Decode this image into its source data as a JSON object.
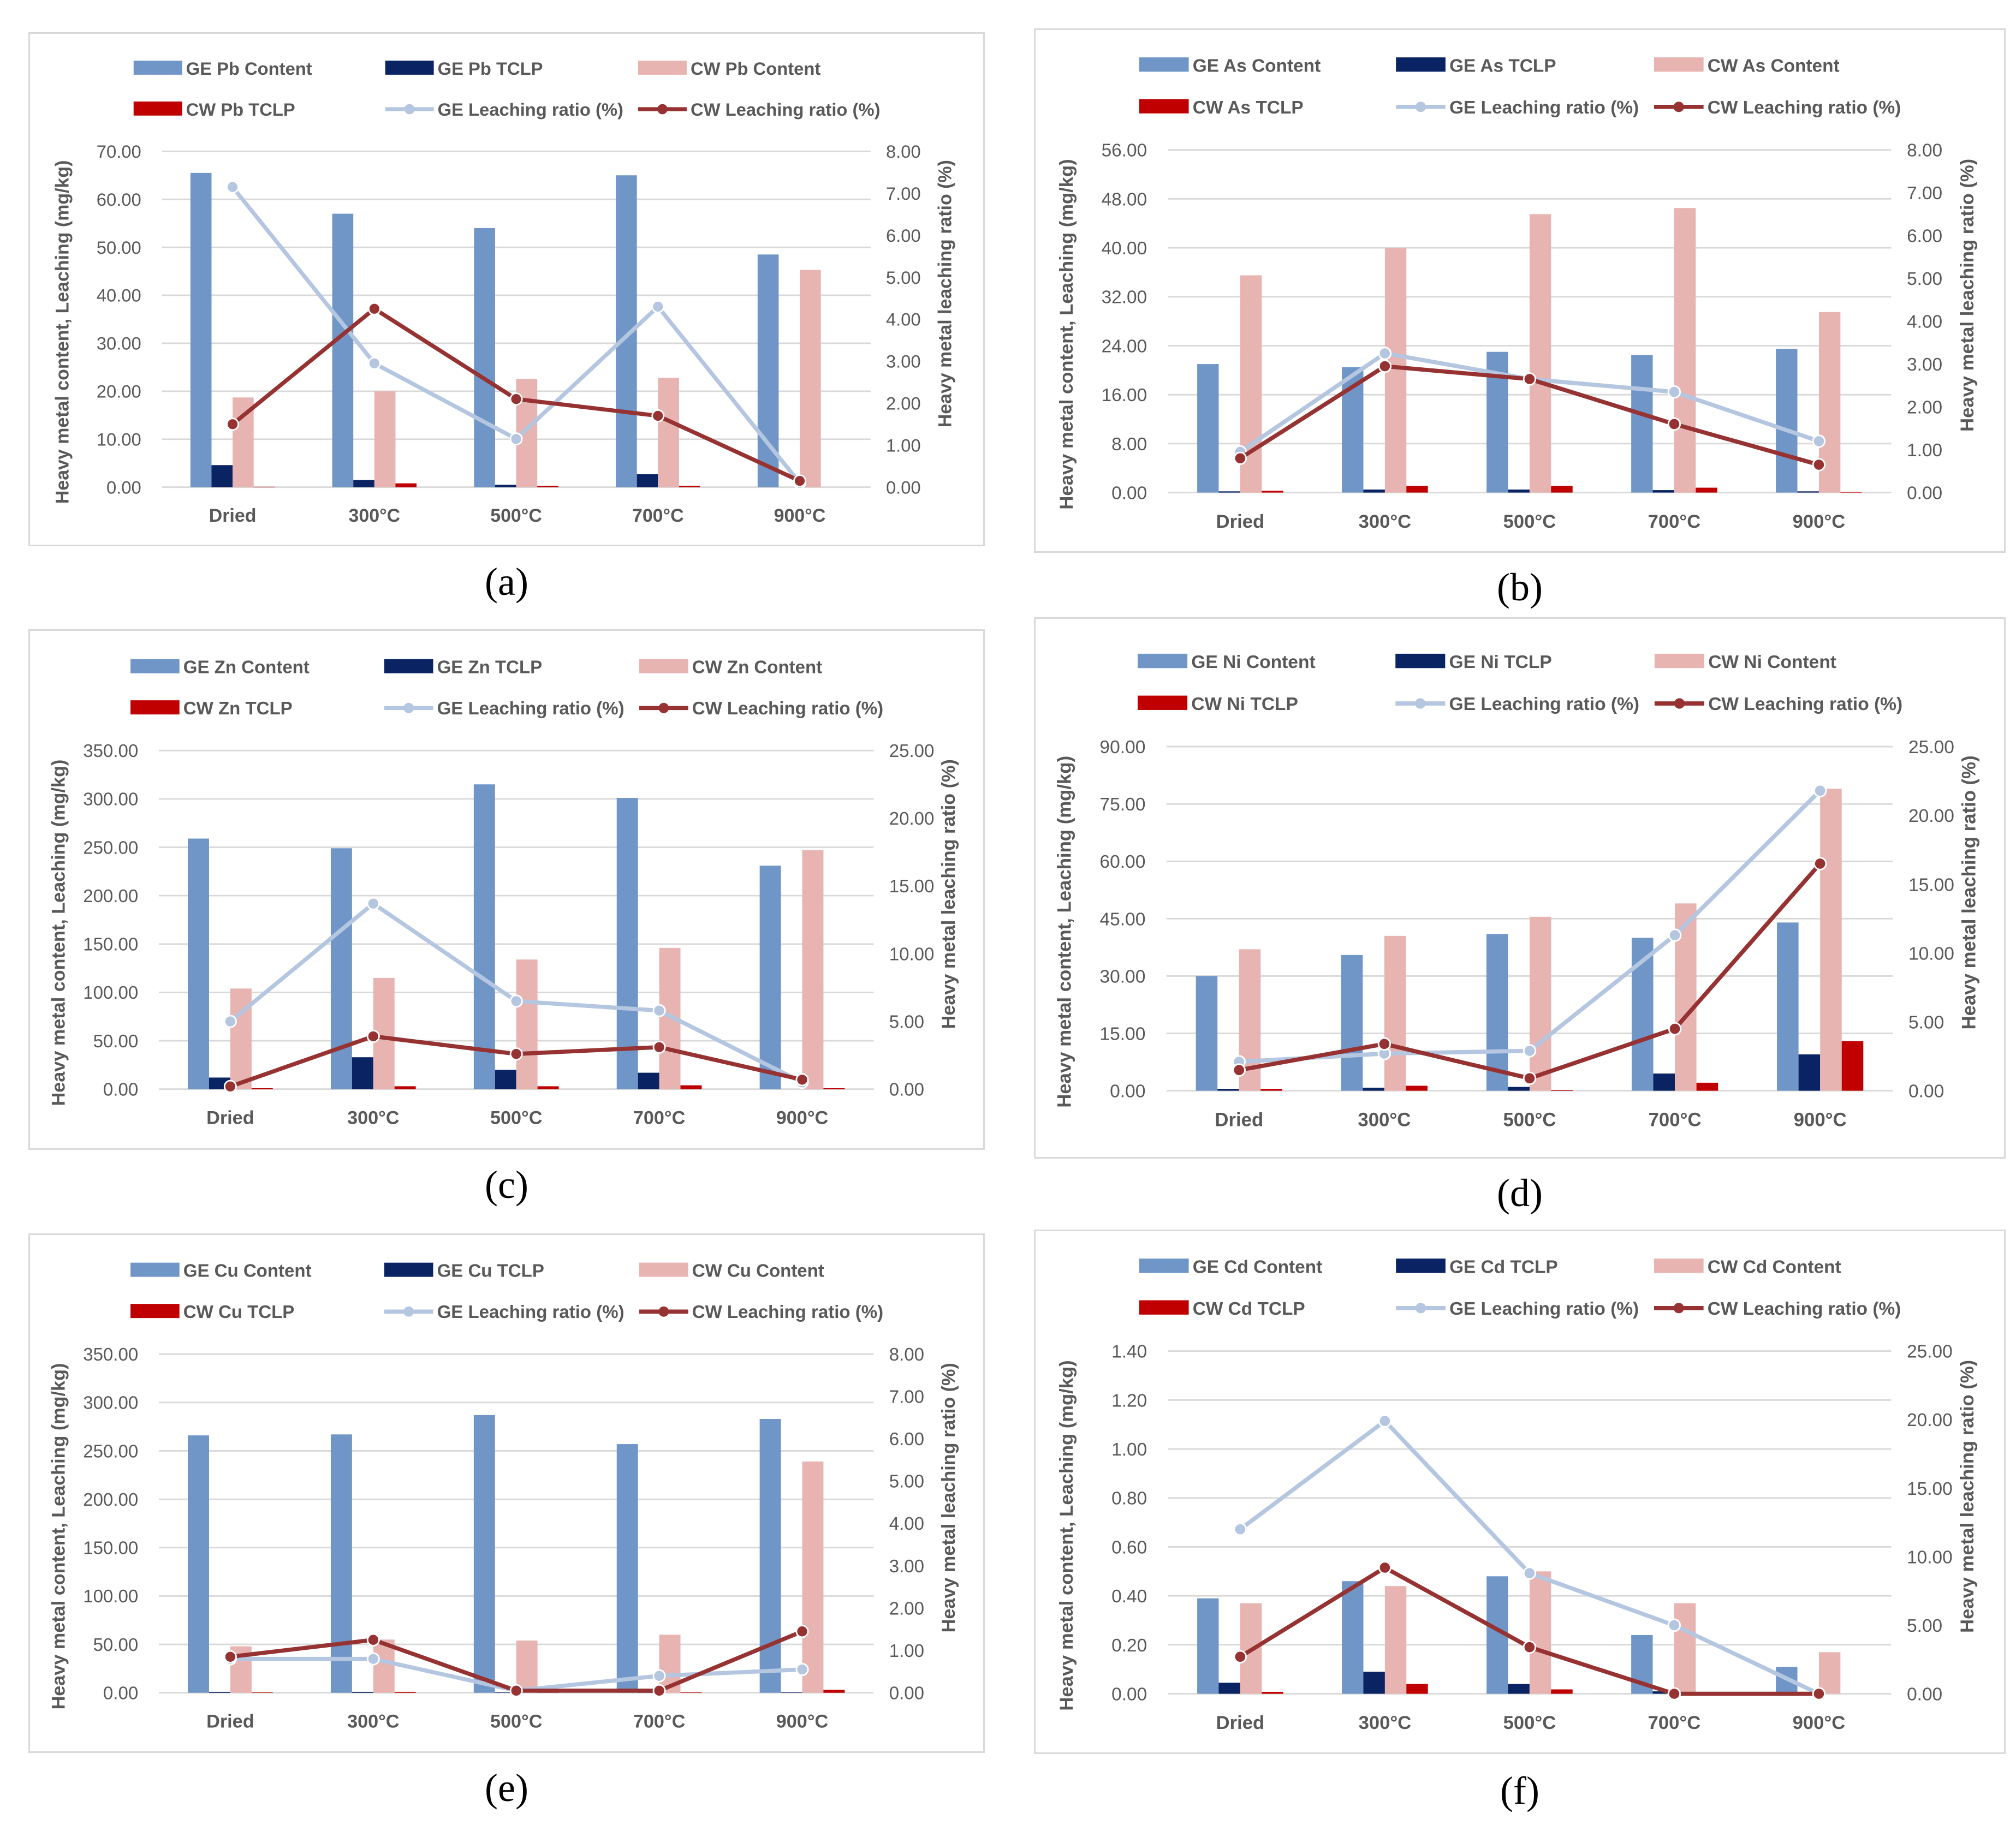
{
  "colors": {
    "ge_content": "#7096c8",
    "ge_tclp": "#0a2463",
    "cw_content": "#e8b4b2",
    "cw_tclp": "#c00000",
    "ge_ratio": "#b4c6e0",
    "cw_ratio": "#963232",
    "grid": "#d9d9d9",
    "text": "#595959"
  },
  "chart_data": [
    {
      "id": "a",
      "panel_label": "(a)",
      "type": "bar",
      "categories": [
        "Dried",
        "300°C",
        "500°C",
        "700°C",
        "900°C"
      ],
      "ylabel": "Heavy metal content, Leaching (mg/kg)",
      "y2label": "Heavy metal leaching ratio (%)",
      "ylim": [
        0,
        70
      ],
      "ytick_step": 10,
      "y2lim": [
        0,
        8
      ],
      "y2tick_step": 1,
      "grid": true,
      "legend": "top",
      "series": [
        {
          "name": "GE Pb Content",
          "kind": "bar",
          "color_key": "ge_content",
          "values": [
            65.5,
            57.0,
            54.0,
            65.0,
            48.5
          ]
        },
        {
          "name": "GE Pb TCLP",
          "kind": "bar",
          "color_key": "ge_tclp",
          "values": [
            4.6,
            1.5,
            0.5,
            2.7,
            0.0
          ]
        },
        {
          "name": "CW Pb Content",
          "kind": "bar",
          "color_key": "cw_content",
          "values": [
            18.7,
            20.0,
            22.6,
            22.8,
            45.3
          ]
        },
        {
          "name": "CW Pb TCLP",
          "kind": "bar",
          "color_key": "cw_tclp",
          "values": [
            0.1,
            0.8,
            0.3,
            0.3,
            0.0
          ]
        },
        {
          "name": "GE Leaching ratio (%)",
          "kind": "line",
          "color_key": "ge_ratio",
          "values": [
            7.15,
            2.95,
            1.15,
            4.3,
            0.1
          ]
        },
        {
          "name": "CW Leaching ratio (%)",
          "kind": "line",
          "color_key": "cw_ratio",
          "values": [
            1.5,
            4.25,
            2.1,
            1.7,
            0.15
          ]
        }
      ]
    },
    {
      "id": "b",
      "panel_label": "(b)",
      "type": "bar",
      "categories": [
        "Dried",
        "300°C",
        "500°C",
        "700°C",
        "900°C"
      ],
      "ylabel": "Heavy metal content, Leaching (mg/kg)",
      "y2label": "Heavy metal leaching ratio (%)",
      "ylim": [
        0,
        56
      ],
      "ytick_step": 8,
      "y2lim": [
        0,
        8
      ],
      "y2tick_step": 1,
      "grid": true,
      "legend": "top",
      "series": [
        {
          "name": "GE As Content",
          "kind": "bar",
          "color_key": "ge_content",
          "values": [
            21.0,
            20.5,
            23.0,
            22.5,
            23.5
          ]
        },
        {
          "name": "GE As TCLP",
          "kind": "bar",
          "color_key": "ge_tclp",
          "values": [
            0.2,
            0.5,
            0.5,
            0.4,
            0.2
          ]
        },
        {
          "name": "CW As Content",
          "kind": "bar",
          "color_key": "cw_content",
          "values": [
            35.5,
            40.0,
            45.5,
            46.5,
            29.5
          ]
        },
        {
          "name": "CW As TCLP",
          "kind": "bar",
          "color_key": "cw_tclp",
          "values": [
            0.3,
            1.1,
            1.1,
            0.8,
            0.1
          ]
        },
        {
          "name": "GE Leaching ratio (%)",
          "kind": "line",
          "color_key": "ge_ratio",
          "values": [
            0.95,
            3.25,
            2.65,
            2.35,
            1.2
          ]
        },
        {
          "name": "CW Leaching ratio (%)",
          "kind": "line",
          "color_key": "cw_ratio",
          "values": [
            0.8,
            2.95,
            2.65,
            1.6,
            0.65
          ]
        }
      ]
    },
    {
      "id": "c",
      "panel_label": "(c)",
      "type": "bar",
      "categories": [
        "Dried",
        "300°C",
        "500°C",
        "700°C",
        "900°C"
      ],
      "ylabel": "Heavy metal content, Leaching (mg/kg)",
      "y2label": "Heavy metal leaching ratio (%)",
      "ylim": [
        0,
        350
      ],
      "ytick_step": 50,
      "y2lim": [
        0,
        25
      ],
      "y2tick_step": 5,
      "grid": true,
      "legend": "top",
      "series": [
        {
          "name": "GE Zn Content",
          "kind": "bar",
          "color_key": "ge_content",
          "values": [
            259,
            249,
            315,
            301,
            231
          ]
        },
        {
          "name": "GE Zn TCLP",
          "kind": "bar",
          "color_key": "ge_tclp",
          "values": [
            12,
            33,
            20,
            17,
            0
          ]
        },
        {
          "name": "CW Zn Content",
          "kind": "bar",
          "color_key": "cw_content",
          "values": [
            104,
            115,
            134,
            146,
            247
          ]
        },
        {
          "name": "CW Zn TCLP",
          "kind": "bar",
          "color_key": "cw_tclp",
          "values": [
            1,
            3,
            3,
            4,
            1
          ]
        },
        {
          "name": "GE Leaching ratio (%)",
          "kind": "line",
          "color_key": "ge_ratio",
          "values": [
            5.0,
            13.7,
            6.5,
            5.8,
            0.5
          ]
        },
        {
          "name": "CW Leaching ratio (%)",
          "kind": "line",
          "color_key": "cw_ratio",
          "values": [
            0.2,
            3.9,
            2.6,
            3.1,
            0.7
          ]
        }
      ]
    },
    {
      "id": "d",
      "panel_label": "(d)",
      "type": "bar",
      "categories": [
        "Dried",
        "300°C",
        "500°C",
        "700°C",
        "900°C"
      ],
      "ylabel": "Heavy metal content, Leaching (mg/kg)",
      "y2label": "Heavy metal leaching ratio (%)",
      "ylim": [
        0,
        90
      ],
      "ytick_step": 15,
      "y2lim": [
        0,
        25
      ],
      "y2tick_step": 5,
      "grid": true,
      "legend": "top",
      "series": [
        {
          "name": "GE Ni Content",
          "kind": "bar",
          "color_key": "ge_content",
          "values": [
            30.0,
            35.5,
            41.0,
            40.0,
            44.0
          ]
        },
        {
          "name": "GE Ni TCLP",
          "kind": "bar",
          "color_key": "ge_tclp",
          "values": [
            0.5,
            0.8,
            1.0,
            4.5,
            9.5
          ]
        },
        {
          "name": "CW Ni Content",
          "kind": "bar",
          "color_key": "cw_content",
          "values": [
            37.0,
            40.5,
            45.5,
            49.0,
            79.0
          ]
        },
        {
          "name": "CW Ni TCLP",
          "kind": "bar",
          "color_key": "cw_tclp",
          "values": [
            0.5,
            1.3,
            0.2,
            2.1,
            13.0
          ]
        },
        {
          "name": "GE Leaching ratio (%)",
          "kind": "line",
          "color_key": "ge_ratio",
          "values": [
            2.1,
            2.7,
            2.9,
            11.3,
            21.8
          ]
        },
        {
          "name": "CW Leaching ratio (%)",
          "kind": "line",
          "color_key": "cw_ratio",
          "values": [
            1.5,
            3.4,
            0.9,
            4.5,
            16.5
          ]
        }
      ]
    },
    {
      "id": "e",
      "panel_label": "(e)",
      "type": "bar",
      "categories": [
        "Dried",
        "300°C",
        "500°C",
        "700°C",
        "900°C"
      ],
      "ylabel": "Heavy metal content, Leaching (mg/kg)",
      "y2label": "Heavy metal leaching ratio (%)",
      "ylim": [
        0,
        350
      ],
      "ytick_step": 50,
      "y2lim": [
        0,
        8
      ],
      "y2tick_step": 1,
      "grid": true,
      "legend": "top",
      "series": [
        {
          "name": "GE Cu Content",
          "kind": "bar",
          "color_key": "ge_content",
          "values": [
            266,
            267,
            287,
            257,
            283
          ]
        },
        {
          "name": "GE Cu TCLP",
          "kind": "bar",
          "color_key": "ge_tclp",
          "values": [
            1,
            1,
            0.5,
            0.5,
            0.5
          ]
        },
        {
          "name": "CW Cu Content",
          "kind": "bar",
          "color_key": "cw_content",
          "values": [
            48,
            55,
            54,
            60,
            239
          ]
        },
        {
          "name": "CW Cu TCLP",
          "kind": "bar",
          "color_key": "cw_tclp",
          "values": [
            0.5,
            1,
            0.5,
            0.5,
            3
          ]
        },
        {
          "name": "GE Leaching ratio (%)",
          "kind": "line",
          "color_key": "ge_ratio",
          "values": [
            0.8,
            0.8,
            0.05,
            0.4,
            0.55
          ]
        },
        {
          "name": "CW Leaching ratio (%)",
          "kind": "line",
          "color_key": "cw_ratio",
          "values": [
            0.85,
            1.25,
            0.05,
            0.05,
            1.45
          ]
        }
      ]
    },
    {
      "id": "f",
      "panel_label": "(f)",
      "type": "bar",
      "categories": [
        "Dried",
        "300°C",
        "500°C",
        "700°C",
        "900°C"
      ],
      "ylabel": "Heavy metal content, Leaching (mg/kg)",
      "y2label": "Heavy metal leaching ratio (%)",
      "ylim": [
        0,
        1.4
      ],
      "ytick_step": 0.2,
      "y2lim": [
        0,
        25
      ],
      "y2tick_step": 5,
      "grid": true,
      "legend": "top",
      "series": [
        {
          "name": "GE Cd Content",
          "kind": "bar",
          "color_key": "ge_content",
          "values": [
            0.39,
            0.46,
            0.48,
            0.24,
            0.11
          ]
        },
        {
          "name": "GE Cd TCLP",
          "kind": "bar",
          "color_key": "ge_tclp",
          "values": [
            0.045,
            0.09,
            0.04,
            0.01,
            0.0
          ]
        },
        {
          "name": "CW Cd Content",
          "kind": "bar",
          "color_key": "cw_content",
          "values": [
            0.37,
            0.44,
            0.5,
            0.37,
            0.17
          ]
        },
        {
          "name": "CW Cd TCLP",
          "kind": "bar",
          "color_key": "cw_tclp",
          "values": [
            0.008,
            0.04,
            0.018,
            0.0,
            0.0
          ]
        },
        {
          "name": "GE Leaching ratio (%)",
          "kind": "line",
          "color_key": "ge_ratio",
          "values": [
            12.0,
            19.9,
            8.8,
            5.0,
            0.0
          ]
        },
        {
          "name": "CW Leaching ratio (%)",
          "kind": "line",
          "color_key": "cw_ratio",
          "values": [
            2.7,
            9.2,
            3.4,
            0.0,
            0.0
          ]
        }
      ]
    }
  ]
}
